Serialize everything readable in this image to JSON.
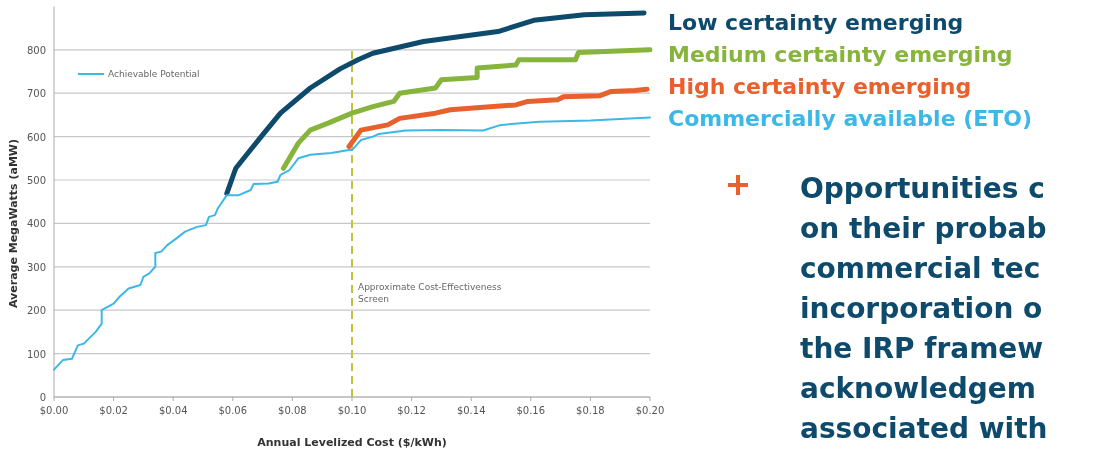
{
  "chart_data": {
    "type": "line",
    "xlabel": "Annual Levelized Cost ($/kWh)",
    "ylabel": "Average MegaWatts (aMW)",
    "xlim": [
      0,
      0.2
    ],
    "ylim": [
      0,
      900
    ],
    "xticks": [
      {
        "value": 0,
        "label": "$0.00"
      },
      {
        "value": 0.02,
        "label": "$0.02"
      },
      {
        "value": 0.04,
        "label": "$0.04"
      },
      {
        "value": 0.06,
        "label": "$0.06"
      },
      {
        "value": 0.08,
        "label": "$0.08"
      },
      {
        "value": 0.1,
        "label": "$0.10"
      },
      {
        "value": 0.12,
        "label": "$0.12"
      },
      {
        "value": 0.14,
        "label": "$0.14"
      },
      {
        "value": 0.16,
        "label": "$0.16"
      },
      {
        "value": 0.18,
        "label": "$0.18"
      },
      {
        "value": 0.2,
        "label": "$0.20"
      }
    ],
    "yticks": [
      0,
      100,
      200,
      300,
      400,
      500,
      600,
      700,
      800
    ],
    "grid": "y",
    "legend": false,
    "line_style": "solid",
    "series": [
      {
        "name": "Low certainty emerging",
        "color": "#0d4a6b",
        "x": [
          0.058,
          0.061,
          0.07,
          0.076,
          0.086,
          0.096,
          0.102,
          0.107,
          0.124,
          0.149,
          0.161,
          0.178,
          0.198
        ],
        "values": [
          469,
          527,
          604,
          654,
          712,
          756,
          777,
          792,
          819,
          842,
          868,
          881,
          885
        ]
      },
      {
        "name": "Medium certainty emerging",
        "color": "#86b43c",
        "x": [
          0.077,
          0.082,
          0.086,
          0.092,
          0.1,
          0.107,
          0.114,
          0.116,
          0.128,
          0.13,
          0.142,
          0.142,
          0.155,
          0.156,
          0.175,
          0.176,
          0.2
        ],
        "values": [
          527,
          585,
          615,
          631,
          654,
          669,
          681,
          700,
          712,
          731,
          736,
          758,
          765,
          777,
          777,
          794,
          800
        ]
      },
      {
        "name": "High certainty emerging",
        "color": "#e8602c",
        "x": [
          0.099,
          0.103,
          0.112,
          0.116,
          0.128,
          0.133,
          0.155,
          0.159,
          0.169,
          0.171,
          0.183,
          0.187,
          0.195,
          0.199
        ],
        "values": [
          577,
          615,
          627,
          642,
          654,
          662,
          673,
          681,
          685,
          692,
          694,
          704,
          706,
          709
        ]
      },
      {
        "name": "Commercially available (ETO)",
        "color": "#3db8e6",
        "x": [
          0,
          0.003,
          0.006,
          0.008,
          0.01,
          0.014,
          0.016,
          0.016,
          0.02,
          0.022,
          0.025,
          0.029,
          0.03,
          0.032,
          0.034,
          0.034,
          0.036,
          0.038,
          0.041,
          0.044,
          0.048,
          0.051,
          0.052,
          0.054,
          0.055,
          0.058,
          0.062,
          0.066,
          0.067,
          0.072,
          0.075,
          0.076,
          0.079,
          0.082,
          0.086,
          0.093,
          0.099,
          0.1,
          0.103,
          0.107,
          0.109,
          0.118,
          0.13,
          0.144,
          0.15,
          0.163,
          0.18,
          0.2
        ],
        "values": [
          63,
          85,
          88,
          119,
          123,
          150,
          169,
          200,
          215,
          231,
          250,
          258,
          277,
          285,
          300,
          332,
          335,
          350,
          365,
          381,
          392,
          396,
          415,
          419,
          435,
          465,
          465,
          477,
          491,
          492,
          496,
          512,
          523,
          550,
          558,
          562,
          569,
          569,
          592,
          600,
          606,
          614,
          615,
          614,
          627,
          634,
          637,
          644
        ]
      }
    ],
    "ref_lines": [
      {
        "axis": "x",
        "value": 0.1,
        "label": "Approximate Cost-Effectiveness Screen",
        "color": "#c2c23a",
        "line_style": "dashed"
      }
    ],
    "annotations": [
      "Achievable Potential",
      "Opportunities c\non their probab\ncommercial tec\nincorporation o\nthe IRP framew\nacknowledgem\nassociated with"
    ]
  }
}
